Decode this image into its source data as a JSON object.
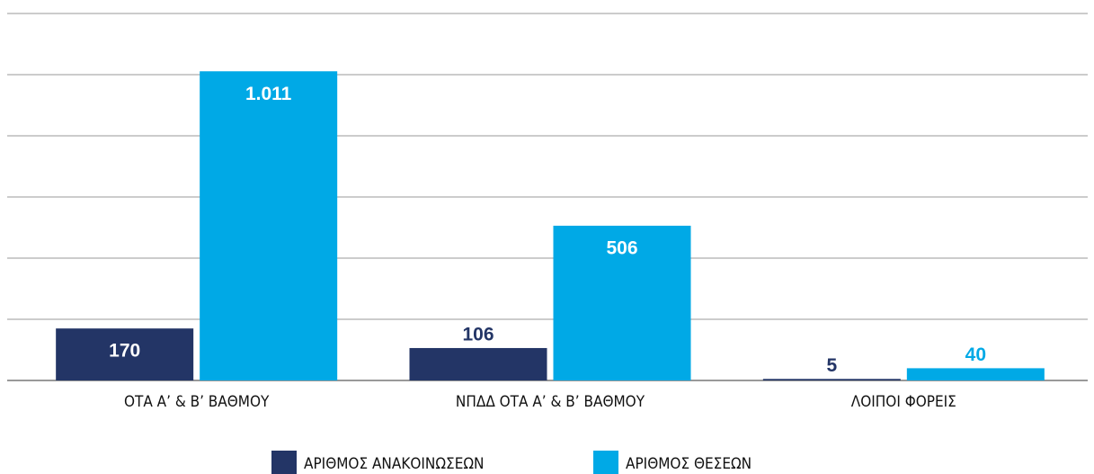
{
  "chart_data": {
    "type": "bar",
    "categories": [
      "ΟΤΑ Α’ & Β’ ΒΑΘΜΟΥ",
      "ΝΠΔΔ ΟΤΑ Α’ & Β’ ΒΑΘΜΟΥ",
      "ΛΟΙΠΟΙ ΦΟΡΕΙΣ"
    ],
    "series": [
      {
        "name": "ΑΡΙΘΜΟΣ ΑΝΑΚΟΙΝΩΣΕΩΝ",
        "color": "#233566",
        "values": [
          170,
          106,
          5
        ]
      },
      {
        "name": "ΑΡΙΘΜΟΣ ΘΕΣΕΩΝ",
        "color": "#00a9e6",
        "values": [
          1011,
          506,
          40
        ],
        "value_labels": [
          "1.011",
          "506",
          "40"
        ]
      }
    ],
    "ylim": [
      0,
      1200
    ],
    "yticks": [
      0,
      200,
      400,
      600,
      800,
      1000,
      1200
    ],
    "grid": true,
    "legend": "bottom"
  }
}
